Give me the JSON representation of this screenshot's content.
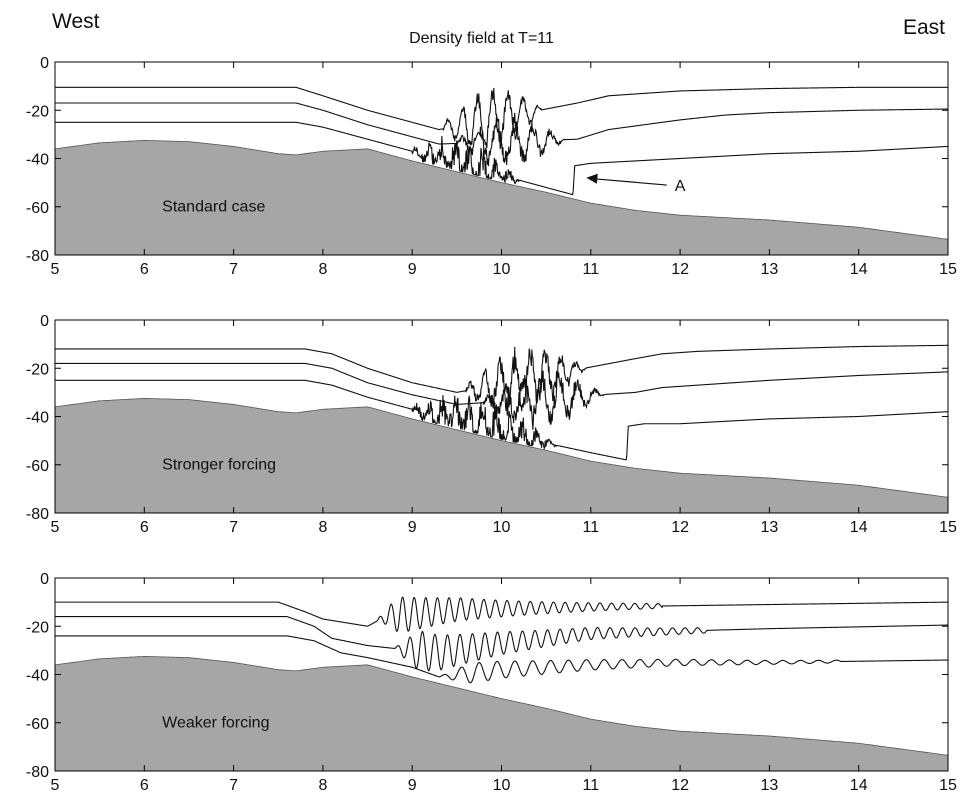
{
  "header": {
    "west": "West",
    "east": "East",
    "title": "Density field at T=11"
  },
  "colors": {
    "bathymetry_fill": "#a6a6a6",
    "line": "#111111",
    "axis": "#000000"
  },
  "chart_data": [
    {
      "type": "line",
      "title": "Density field at T=11",
      "annotation_label": "Standard case",
      "arrow_label": "A",
      "arrow": {
        "from": [
          11.85,
          -51
        ],
        "to": [
          10.95,
          -48
        ]
      },
      "xlim": [
        5,
        15
      ],
      "ylim": [
        -80,
        0
      ],
      "xticks": [
        5,
        6,
        7,
        8,
        9,
        10,
        11,
        12,
        13,
        14,
        15
      ],
      "yticks": [
        0,
        -20,
        -40,
        -60,
        -80
      ],
      "bathymetry": {
        "x": [
          5,
          5.5,
          6,
          6.5,
          7,
          7.5,
          7.7,
          8,
          8.5,
          9,
          9.5,
          10,
          10.5,
          11,
          11.5,
          12,
          12.5,
          13,
          13.5,
          14,
          14.5,
          15
        ],
        "y": [
          -36,
          -33.5,
          -32.5,
          -33,
          -35,
          -38,
          -38.5,
          -37,
          -36,
          -41,
          -45.5,
          -50,
          -54,
          -58.5,
          -61.5,
          -63.5,
          -64.5,
          -65.5,
          -67,
          -68.5,
          -71,
          -73.5
        ]
      },
      "isopycnals": [
        {
          "x": [
            5,
            7.7,
            8.0,
            8.5,
            9.0,
            9.3,
            10.85,
            11.2,
            11.6,
            12.0,
            12.5,
            13.0,
            14.0,
            15.0
          ],
          "y": [
            -10.5,
            -10.5,
            -14,
            -20,
            -25,
            -28,
            -17,
            -14,
            -13,
            -12,
            -11.5,
            -11,
            -10.5,
            -10.5
          ],
          "wave": {
            "x_start": 9.35,
            "x_end": 11.0,
            "amplitude": 11,
            "wavelength": 0.17,
            "noise": 3
          }
        },
        {
          "x": [
            5,
            7.7,
            8.0,
            8.5,
            9.0,
            9.3,
            10.85,
            11.2,
            11.6,
            12.0,
            12.5,
            13.0,
            14.0,
            15.0
          ],
          "y": [
            -17,
            -17,
            -20,
            -26,
            -31,
            -34,
            -32,
            -28,
            -26,
            -24,
            -22,
            -21,
            -20,
            -19.5
          ],
          "wave": {
            "x_start": 9.5,
            "x_end": 11.3,
            "amplitude": 8,
            "wavelength": 0.2,
            "noise": 4
          }
        },
        {
          "x": [
            5,
            7.7,
            8.0,
            8.5,
            9.0,
            9.5,
            10.0,
            10.5,
            10.8,
            10.82,
            11.0,
            11.5,
            12.0,
            12.5,
            13.0,
            14.0,
            15.0
          ],
          "y": [
            -25,
            -25,
            -27,
            -32,
            -37,
            -42,
            -47,
            -52,
            -55,
            -43,
            -42,
            -41,
            -40,
            -39,
            -38,
            -37,
            -35
          ],
          "wave": {
            "x_start": 9.0,
            "x_end": 10.8,
            "amplitude": 6,
            "wavelength": 0.15,
            "noise": 6
          }
        }
      ]
    },
    {
      "type": "line",
      "annotation_label": "Stronger forcing",
      "xlim": [
        5,
        15
      ],
      "ylim": [
        -80,
        0
      ],
      "xticks": [
        5,
        6,
        7,
        8,
        9,
        10,
        11,
        12,
        13,
        14,
        15
      ],
      "yticks": [
        0,
        -20,
        -40,
        -60,
        -80
      ],
      "bathymetry": {
        "x": [
          5,
          5.5,
          6,
          6.5,
          7,
          7.5,
          7.7,
          8,
          8.5,
          9,
          9.5,
          10,
          10.5,
          11,
          11.5,
          12,
          12.5,
          13,
          13.5,
          14,
          14.5,
          15
        ],
        "y": [
          -36,
          -33.5,
          -32.5,
          -33,
          -35,
          -38,
          -38.5,
          -37,
          -36,
          -41,
          -45.5,
          -50,
          -54,
          -58.5,
          -61.5,
          -63.5,
          -64.5,
          -65.5,
          -67,
          -68.5,
          -71,
          -73.5
        ]
      },
      "isopycnals": [
        {
          "x": [
            5,
            7.8,
            8.1,
            8.5,
            9.0,
            9.5,
            11.5,
            11.8,
            12.2,
            13.0,
            14.0,
            15.0
          ],
          "y": [
            -12,
            -12,
            -14,
            -20,
            -26,
            -30,
            -16,
            -14,
            -13,
            -12,
            -11,
            -10.5
          ],
          "wave": {
            "x_start": 9.6,
            "x_end": 11.6,
            "amplitude": 10,
            "wavelength": 0.17,
            "noise": 5
          }
        },
        {
          "x": [
            5,
            7.8,
            8.1,
            8.5,
            9.0,
            9.5,
            11.5,
            11.8,
            12.2,
            13.0,
            14.0,
            15.0
          ],
          "y": [
            -18,
            -18,
            -20,
            -26,
            -31,
            -35,
            -30,
            -28,
            -27,
            -25,
            -23,
            -21.5
          ],
          "wave": {
            "x_start": 9.8,
            "x_end": 11.8,
            "amplitude": 8,
            "wavelength": 0.2,
            "noise": 5
          }
        },
        {
          "x": [
            5,
            7.8,
            8.1,
            8.5,
            9.0,
            9.5,
            10.0,
            10.5,
            11.0,
            11.4,
            11.42,
            11.6,
            12.0,
            12.5,
            13.0,
            14.0,
            15.0
          ],
          "y": [
            -25,
            -25,
            -27,
            -32,
            -37,
            -41,
            -46,
            -51,
            -55,
            -58,
            -44,
            -43,
            -43,
            -42,
            -41,
            -40,
            -38
          ],
          "wave": {
            "x_start": 9.0,
            "x_end": 11.4,
            "amplitude": 6,
            "wavelength": 0.15,
            "noise": 7
          }
        }
      ]
    },
    {
      "type": "line",
      "annotation_label": "Weaker forcing",
      "xlim": [
        5,
        15
      ],
      "ylim": [
        -80,
        0
      ],
      "xticks": [
        5,
        6,
        7,
        8,
        9,
        10,
        11,
        12,
        13,
        14,
        15
      ],
      "yticks": [
        0,
        -20,
        -40,
        -60,
        -80
      ],
      "bathymetry": {
        "x": [
          5,
          5.5,
          6,
          6.5,
          7,
          7.5,
          7.7,
          8,
          8.5,
          9,
          9.5,
          10,
          10.5,
          11,
          11.5,
          12,
          12.5,
          13,
          13.5,
          14,
          14.5,
          15
        ],
        "y": [
          -36,
          -33.5,
          -32.5,
          -33,
          -35,
          -38,
          -38.5,
          -37,
          -36,
          -41,
          -45.5,
          -50,
          -54,
          -58.5,
          -61.5,
          -63.5,
          -64.5,
          -65.5,
          -67,
          -68.5,
          -71,
          -73.5
        ]
      },
      "isopycnals": [
        {
          "x": [
            5,
            7.5,
            7.8,
            8.0,
            8.5,
            8.7,
            9.5,
            11.0,
            13.0,
            15.0
          ],
          "y": [
            -10,
            -10,
            -14,
            -17,
            -20,
            -16,
            -13,
            -12,
            -11,
            -10
          ],
          "wave": {
            "x_start": 8.6,
            "x_end": 11.8,
            "amplitude": 9,
            "wavelength": 0.13,
            "noise": 0,
            "decay": true
          }
        },
        {
          "x": [
            5,
            7.6,
            7.9,
            8.1,
            8.5,
            9.0,
            9.3,
            10.0,
            11.0,
            13.0,
            15.0
          ],
          "y": [
            -16,
            -16,
            -20,
            -25,
            -28,
            -30,
            -31,
            -27,
            -23,
            -21,
            -19.5
          ],
          "wave": {
            "x_start": 8.8,
            "x_end": 12.3,
            "amplitude": 10,
            "wavelength": 0.14,
            "noise": 0,
            "decay": true
          }
        },
        {
          "x": [
            5,
            7.6,
            7.9,
            8.2,
            8.5,
            9.0,
            9.3,
            10.0,
            11.0,
            12.0,
            13.0,
            14.0,
            15.0
          ],
          "y": [
            -24,
            -24,
            -26,
            -31,
            -33,
            -37,
            -41,
            -38,
            -36,
            -35,
            -35,
            -34.5,
            -34
          ],
          "wave": {
            "x_start": 9.3,
            "x_end": 13.8,
            "amplitude": 5,
            "wavelength": 0.2,
            "noise": 0,
            "decay": true
          }
        }
      ]
    }
  ]
}
